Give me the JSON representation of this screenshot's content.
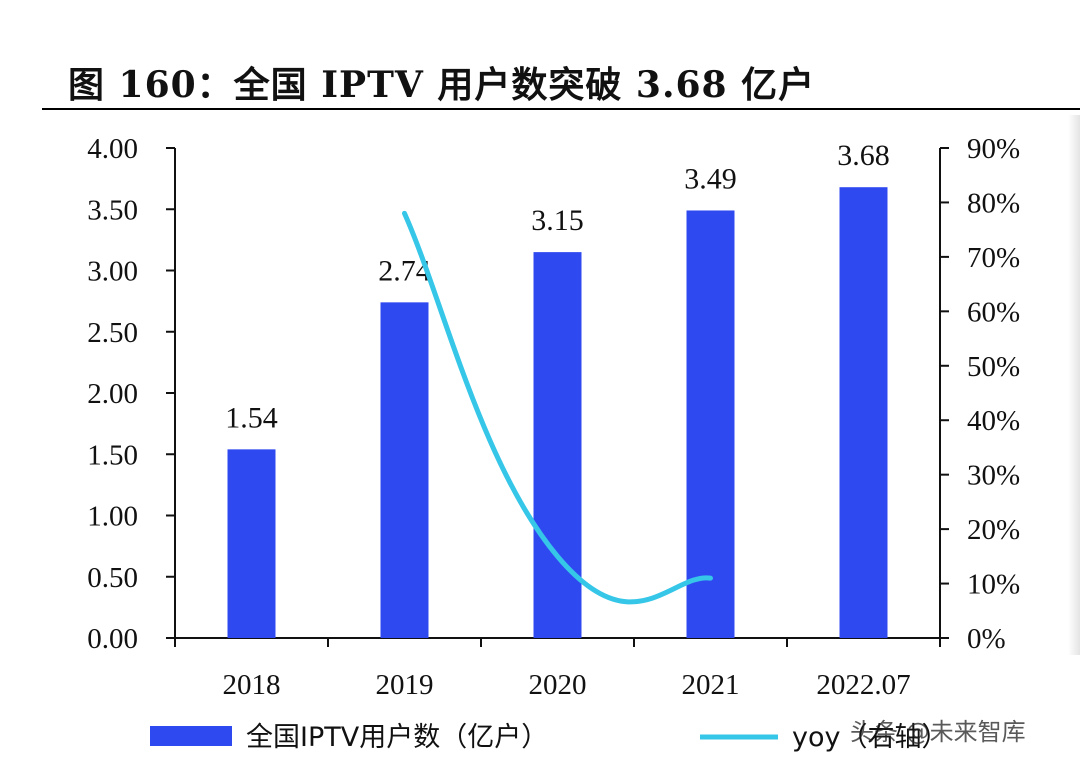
{
  "chart_data": {
    "type": "bar",
    "title": "图 160：全国 IPTV 用户数突破 3.68 亿户",
    "categories": [
      "2018",
      "2019",
      "2020",
      "2021",
      "2022.07"
    ],
    "series": [
      {
        "name": "全国IPTV用户数（亿户）",
        "kind": "bar",
        "axis": "left",
        "color": "#2f49f1",
        "values": [
          1.54,
          2.74,
          3.15,
          3.49,
          3.68
        ],
        "labels": [
          "1.54",
          "2.74",
          "3.15",
          "3.49",
          "3.68"
        ]
      },
      {
        "name": "yoy（右轴）",
        "kind": "line",
        "axis": "right",
        "color": "#35c6e8",
        "values": [
          null,
          78,
          15,
          11,
          null
        ]
      }
    ],
    "left_axis": {
      "ylim": [
        0,
        4
      ],
      "ticks": [
        0,
        0.5,
        1,
        1.5,
        2,
        2.5,
        3,
        3.5,
        4
      ],
      "tick_labels": [
        "0.00",
        "0.50",
        "1.00",
        "1.50",
        "2.00",
        "2.50",
        "3.00",
        "3.50",
        "4.00"
      ]
    },
    "right_axis": {
      "ylim": [
        0,
        90
      ],
      "ticks": [
        0,
        10,
        20,
        30,
        40,
        50,
        60,
        70,
        80,
        90
      ],
      "tick_labels": [
        "0%",
        "10%",
        "20%",
        "30%",
        "40%",
        "50%",
        "60%",
        "70%",
        "80%",
        "90%"
      ]
    },
    "legend": {
      "position": "bottom",
      "bar_label": "全国IPTV用户数（亿户）",
      "line_label": "yoy（右轴）"
    },
    "grid": false
  },
  "watermark": "头条 @未来智库"
}
